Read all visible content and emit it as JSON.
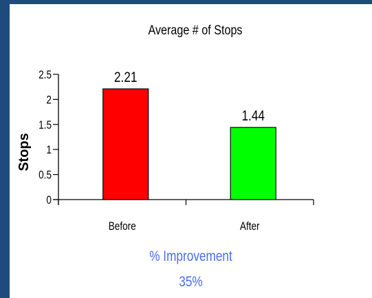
{
  "chart_data": {
    "type": "bar",
    "title": "Average # of Stops",
    "xlabel": "",
    "ylabel": "Stops",
    "categories": [
      "Before",
      "After"
    ],
    "values": [
      2.21,
      1.44
    ],
    "data_labels": [
      "2.21",
      "1.44"
    ],
    "bar_colors": [
      "#ff0000",
      "#00ff00"
    ],
    "ylim": [
      0,
      2.5
    ],
    "yticks": [
      0,
      0.5,
      1,
      1.5,
      2,
      2.5
    ],
    "ytick_labels": [
      "0",
      "0.5",
      "1",
      "1.5",
      "2",
      "2.5"
    ],
    "grid": false,
    "legend": "none"
  },
  "improvement": {
    "label": "% Improvement",
    "value": "35%"
  },
  "colors": {
    "frame": "#1f4a7c",
    "caption": "#4a6cf0"
  }
}
